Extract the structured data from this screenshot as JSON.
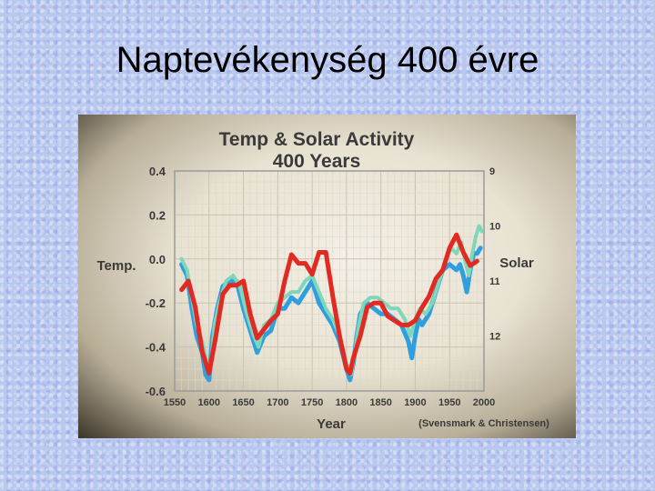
{
  "slide": {
    "title": "Naptevékenység 400 évre"
  },
  "chart_data": {
    "type": "line",
    "title": "Temp & Solar Activity",
    "subtitle": "400 Years",
    "xlabel": "Year",
    "ylabel": "Temp.",
    "y2label": "Solar",
    "source": "(Svensmark & Christensen)",
    "xlim": [
      1550,
      2000
    ],
    "ylim": [
      -0.6,
      0.4
    ],
    "x_ticks": [
      "1550",
      "1600",
      "1650",
      "1700",
      "1750",
      "1800",
      "1850",
      "1900",
      "1950",
      "2000"
    ],
    "y_ticks": [
      "0.4",
      "0.2",
      "0.0",
      "-0.2",
      "-0.4",
      "-0.6"
    ],
    "y2_ticks": [
      "9",
      "10",
      "11",
      "12"
    ],
    "y2lim": [
      9,
      13
    ],
    "y2_inverted": true,
    "grid": true,
    "series": [
      {
        "color": "#2f9fe0",
        "axis": "y2",
        "x": [
          1560,
          1568,
          1575,
          1582,
          1590,
          1595,
          1600,
          1605,
          1612,
          1620,
          1630,
          1640,
          1650,
          1660,
          1670,
          1680,
          1690,
          1700,
          1710,
          1720,
          1730,
          1740,
          1750,
          1760,
          1770,
          1780,
          1790,
          1800,
          1805,
          1810,
          1815,
          1820,
          1830,
          1840,
          1850,
          1860,
          1870,
          1880,
          1890,
          1895,
          1900,
          1905,
          1910,
          1920,
          1930,
          1940,
          1950,
          1960,
          1965,
          1970,
          1975,
          1980,
          1985,
          1990,
          1995
        ],
        "y": [
          10.7,
          10.9,
          11.5,
          12.0,
          12.3,
          12.7,
          12.8,
          12.0,
          11.5,
          11.1,
          11.0,
          11.0,
          11.5,
          11.9,
          12.3,
          12.0,
          11.9,
          11.5,
          11.5,
          11.3,
          11.4,
          11.2,
          11.0,
          11.4,
          11.6,
          11.8,
          12.1,
          12.6,
          12.8,
          12.5,
          12.0,
          11.6,
          11.4,
          11.5,
          11.6,
          11.6,
          11.7,
          11.8,
          12.1,
          12.4,
          12.0,
          11.7,
          11.8,
          11.6,
          11.2,
          10.8,
          10.7,
          10.8,
          10.7,
          10.9,
          11.2,
          10.8,
          10.5,
          10.5,
          10.4
        ]
      },
      {
        "color": "#7fd6b8",
        "axis": "y2",
        "x": [
          1560,
          1568,
          1575,
          1582,
          1590,
          1597,
          1602,
          1608,
          1615,
          1625,
          1635,
          1645,
          1655,
          1665,
          1672,
          1680,
          1690,
          1700,
          1710,
          1720,
          1730,
          1740,
          1750,
          1760,
          1770,
          1780,
          1790,
          1800,
          1807,
          1812,
          1818,
          1825,
          1835,
          1845,
          1855,
          1865,
          1875,
          1885,
          1893,
          1900,
          1907,
          1915,
          1925,
          1935,
          1945,
          1952,
          1960,
          1967,
          1972,
          1978,
          1983,
          1988,
          1993,
          1997
        ],
        "y": [
          10.6,
          10.8,
          11.3,
          11.8,
          12.1,
          12.5,
          12.6,
          11.8,
          11.4,
          11.0,
          10.9,
          11.1,
          11.6,
          12.0,
          12.2,
          11.8,
          11.7,
          11.4,
          11.3,
          11.2,
          11.2,
          11.0,
          10.9,
          11.2,
          11.5,
          11.7,
          12.0,
          12.5,
          12.7,
          12.3,
          11.8,
          11.4,
          11.3,
          11.3,
          11.4,
          11.5,
          11.5,
          11.7,
          12.0,
          11.7,
          11.5,
          11.6,
          11.4,
          11.0,
          10.6,
          10.4,
          10.5,
          10.3,
          10.6,
          10.9,
          10.5,
          10.2,
          10.0,
          10.1
        ]
      },
      {
        "color": "#e02a22",
        "axis": "y",
        "x": [
          1560,
          1570,
          1580,
          1590,
          1600,
          1610,
          1620,
          1630,
          1640,
          1650,
          1660,
          1670,
          1680,
          1690,
          1700,
          1710,
          1720,
          1730,
          1740,
          1750,
          1760,
          1770,
          1780,
          1790,
          1800,
          1805,
          1810,
          1820,
          1830,
          1840,
          1850,
          1860,
          1870,
          1880,
          1890,
          1900,
          1910,
          1920,
          1930,
          1940,
          1950,
          1960,
          1970,
          1980,
          1990
        ],
        "y": [
          -0.14,
          -0.1,
          -0.22,
          -0.42,
          -0.52,
          -0.35,
          -0.16,
          -0.12,
          -0.12,
          -0.1,
          -0.25,
          -0.36,
          -0.32,
          -0.28,
          -0.25,
          -0.1,
          0.02,
          -0.02,
          -0.02,
          -0.07,
          0.03,
          0.03,
          -0.17,
          -0.35,
          -0.5,
          -0.52,
          -0.45,
          -0.35,
          -0.22,
          -0.2,
          -0.2,
          -0.26,
          -0.28,
          -0.3,
          -0.3,
          -0.28,
          -0.22,
          -0.17,
          -0.09,
          -0.05,
          0.05,
          0.11,
          0.03,
          -0.03,
          -0.01
        ]
      }
    ]
  }
}
